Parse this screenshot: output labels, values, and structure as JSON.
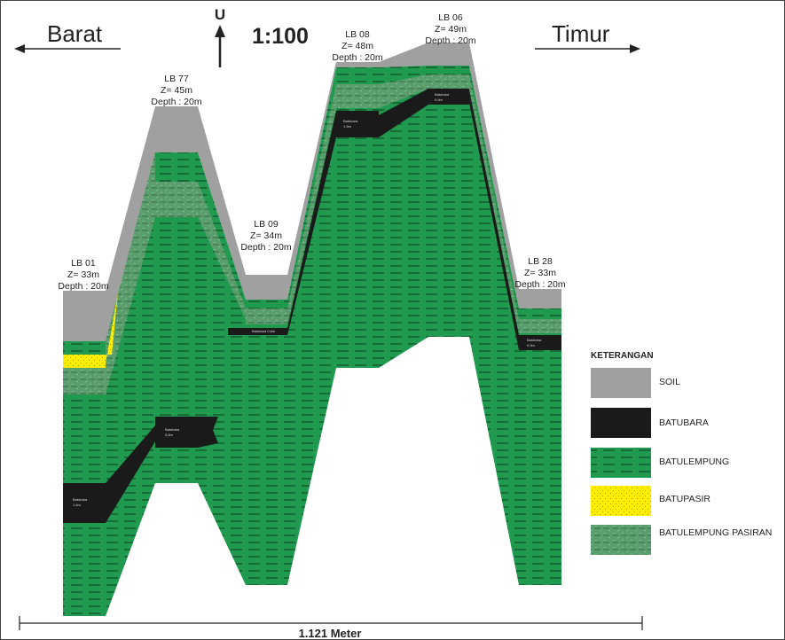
{
  "header": {
    "west_label": "Barat",
    "east_label": "Timur",
    "north_label": "U",
    "scale_label": "1:100"
  },
  "boreholes": [
    {
      "name": "LB 01",
      "z": "Z= 33m",
      "depth": "Depth : 20m"
    },
    {
      "name": "LB 77",
      "z": "Z= 45m",
      "depth": "Depth : 20m"
    },
    {
      "name": "LB 09",
      "z": "Z= 34m",
      "depth": "Depth : 20m"
    },
    {
      "name": "LB 08",
      "z": "Z= 48m",
      "depth": "Depth : 20m"
    },
    {
      "name": "LB 06",
      "z": "Z= 49m",
      "depth": "Depth : 20m"
    },
    {
      "name": "LB 28",
      "z": "Z= 33m",
      "depth": "Depth : 20m"
    }
  ],
  "legend": {
    "title": "KETERANGAN",
    "items": [
      {
        "label": "SOIL",
        "color": "#a0a0a0"
      },
      {
        "label": "BATUBARA",
        "color": "#1a1a1a"
      },
      {
        "label": "BATULEMPUNG",
        "color": "#1f9a4e"
      },
      {
        "label": "BATUPASIR",
        "color": "#ffee00"
      },
      {
        "label": "BATULEMPUNG PASIRAN",
        "color": "#5a9e6e"
      }
    ]
  },
  "scale_bar": {
    "label": "1.121 Meter"
  }
}
